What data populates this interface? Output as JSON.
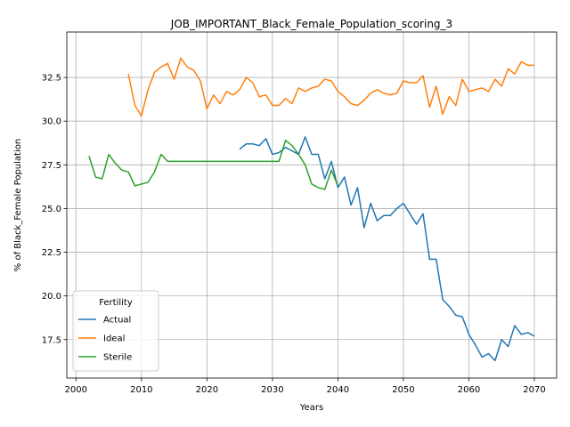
{
  "chart_data": {
    "type": "line",
    "title": "JOB_IMPORTANT_Black_Female_Population_scoring_3",
    "xlabel": "Years",
    "ylabel": "% of Black_Female Population",
    "xlim": [
      1998.6,
      2073.4
    ],
    "ylim": [
      15.3,
      35.1
    ],
    "xticks": [
      2000,
      2010,
      2020,
      2030,
      2040,
      2050,
      2060,
      2070
    ],
    "yticks": [
      17.5,
      20.0,
      22.5,
      25.0,
      27.5,
      30.0,
      32.5
    ],
    "ytick_labels": [
      "17.5",
      "20.0",
      "22.5",
      "25.0",
      "27.5",
      "30.0",
      "32.5"
    ],
    "grid": true,
    "legend": {
      "title": "Fertility",
      "placement": "lower-left"
    },
    "series": [
      {
        "name": "Actual",
        "color": "#1f77b4",
        "x": [
          2025,
          2026,
          2027,
          2028,
          2029,
          2030,
          2031,
          2032,
          2033,
          2034,
          2035,
          2036,
          2037,
          2038,
          2039,
          2040,
          2041,
          2042,
          2043,
          2044,
          2045,
          2046,
          2047,
          2048,
          2049,
          2050,
          2051,
          2052,
          2053,
          2054,
          2055,
          2056,
          2057,
          2058,
          2059,
          2060,
          2061,
          2062,
          2063,
          2064,
          2065,
          2066,
          2067,
          2068,
          2069,
          2070
        ],
        "y": [
          28.4,
          28.7,
          28.7,
          28.6,
          29.0,
          28.1,
          28.2,
          28.5,
          28.3,
          28.1,
          29.1,
          28.1,
          28.1,
          26.7,
          27.7,
          26.2,
          26.8,
          25.2,
          26.2,
          23.9,
          25.3,
          24.3,
          24.6,
          24.6,
          25.0,
          25.3,
          24.7,
          24.1,
          24.7,
          22.1,
          22.1,
          19.8,
          19.4,
          18.9,
          18.8,
          17.8,
          17.2,
          16.5,
          16.7,
          16.3,
          17.5,
          17.1,
          18.3,
          17.8,
          17.9,
          17.7
        ]
      },
      {
        "name": "Ideal",
        "color": "#ff7f0e",
        "x": [
          2008,
          2009,
          2010,
          2011,
          2012,
          2013,
          2014,
          2015,
          2016,
          2017,
          2018,
          2019,
          2020,
          2021,
          2022,
          2023,
          2024,
          2025,
          2026,
          2027,
          2028,
          2029,
          2030,
          2031,
          2032,
          2033,
          2034,
          2035,
          2036,
          2037,
          2038,
          2039,
          2040,
          2041,
          2042,
          2043,
          2044,
          2045,
          2046,
          2047,
          2048,
          2049,
          2050,
          2051,
          2052,
          2053,
          2054,
          2055,
          2056,
          2057,
          2058,
          2059,
          2060,
          2061,
          2062,
          2063,
          2064,
          2065,
          2066,
          2067,
          2068,
          2069,
          2070
        ],
        "y": [
          32.7,
          30.9,
          30.3,
          31.8,
          32.8,
          33.1,
          33.3,
          32.4,
          33.6,
          33.1,
          32.9,
          32.3,
          30.7,
          31.5,
          31.0,
          31.7,
          31.5,
          31.8,
          32.5,
          32.2,
          31.4,
          31.5,
          30.9,
          30.9,
          31.3,
          31.0,
          31.9,
          31.7,
          31.9,
          32.0,
          32.4,
          32.3,
          31.7,
          31.4,
          31.0,
          30.9,
          31.2,
          31.6,
          31.8,
          31.6,
          31.5,
          31.6,
          32.3,
          32.2,
          32.2,
          32.6,
          30.8,
          32.0,
          30.4,
          31.4,
          30.9,
          32.4,
          31.7,
          31.8,
          31.9,
          31.7,
          32.4,
          32.0,
          33.0,
          32.7,
          33.4,
          33.2,
          33.2
        ]
      },
      {
        "name": "Sterile",
        "color": "#2ca02c",
        "x": [
          2002,
          2003,
          2004,
          2005,
          2006,
          2007,
          2008,
          2009,
          2010,
          2011,
          2012,
          2013,
          2014,
          2015,
          2016,
          2017,
          2018,
          2019,
          2020,
          2021,
          2022,
          2023,
          2024,
          2025,
          2026,
          2027,
          2028,
          2029,
          2030,
          2031,
          2032,
          2033,
          2034,
          2035,
          2036,
          2037,
          2038,
          2039,
          2040
        ],
        "y": [
          28.0,
          26.8,
          26.7,
          28.1,
          27.6,
          27.2,
          27.1,
          26.3,
          26.4,
          26.5,
          27.1,
          28.1,
          27.7,
          27.7,
          27.7,
          27.7,
          27.7,
          27.7,
          27.7,
          27.7,
          27.7,
          27.7,
          27.7,
          27.7,
          27.7,
          27.7,
          27.7,
          27.7,
          27.7,
          27.7,
          28.9,
          28.6,
          28.1,
          27.5,
          26.4,
          26.2,
          26.1,
          27.2,
          26.3
        ]
      }
    ]
  }
}
